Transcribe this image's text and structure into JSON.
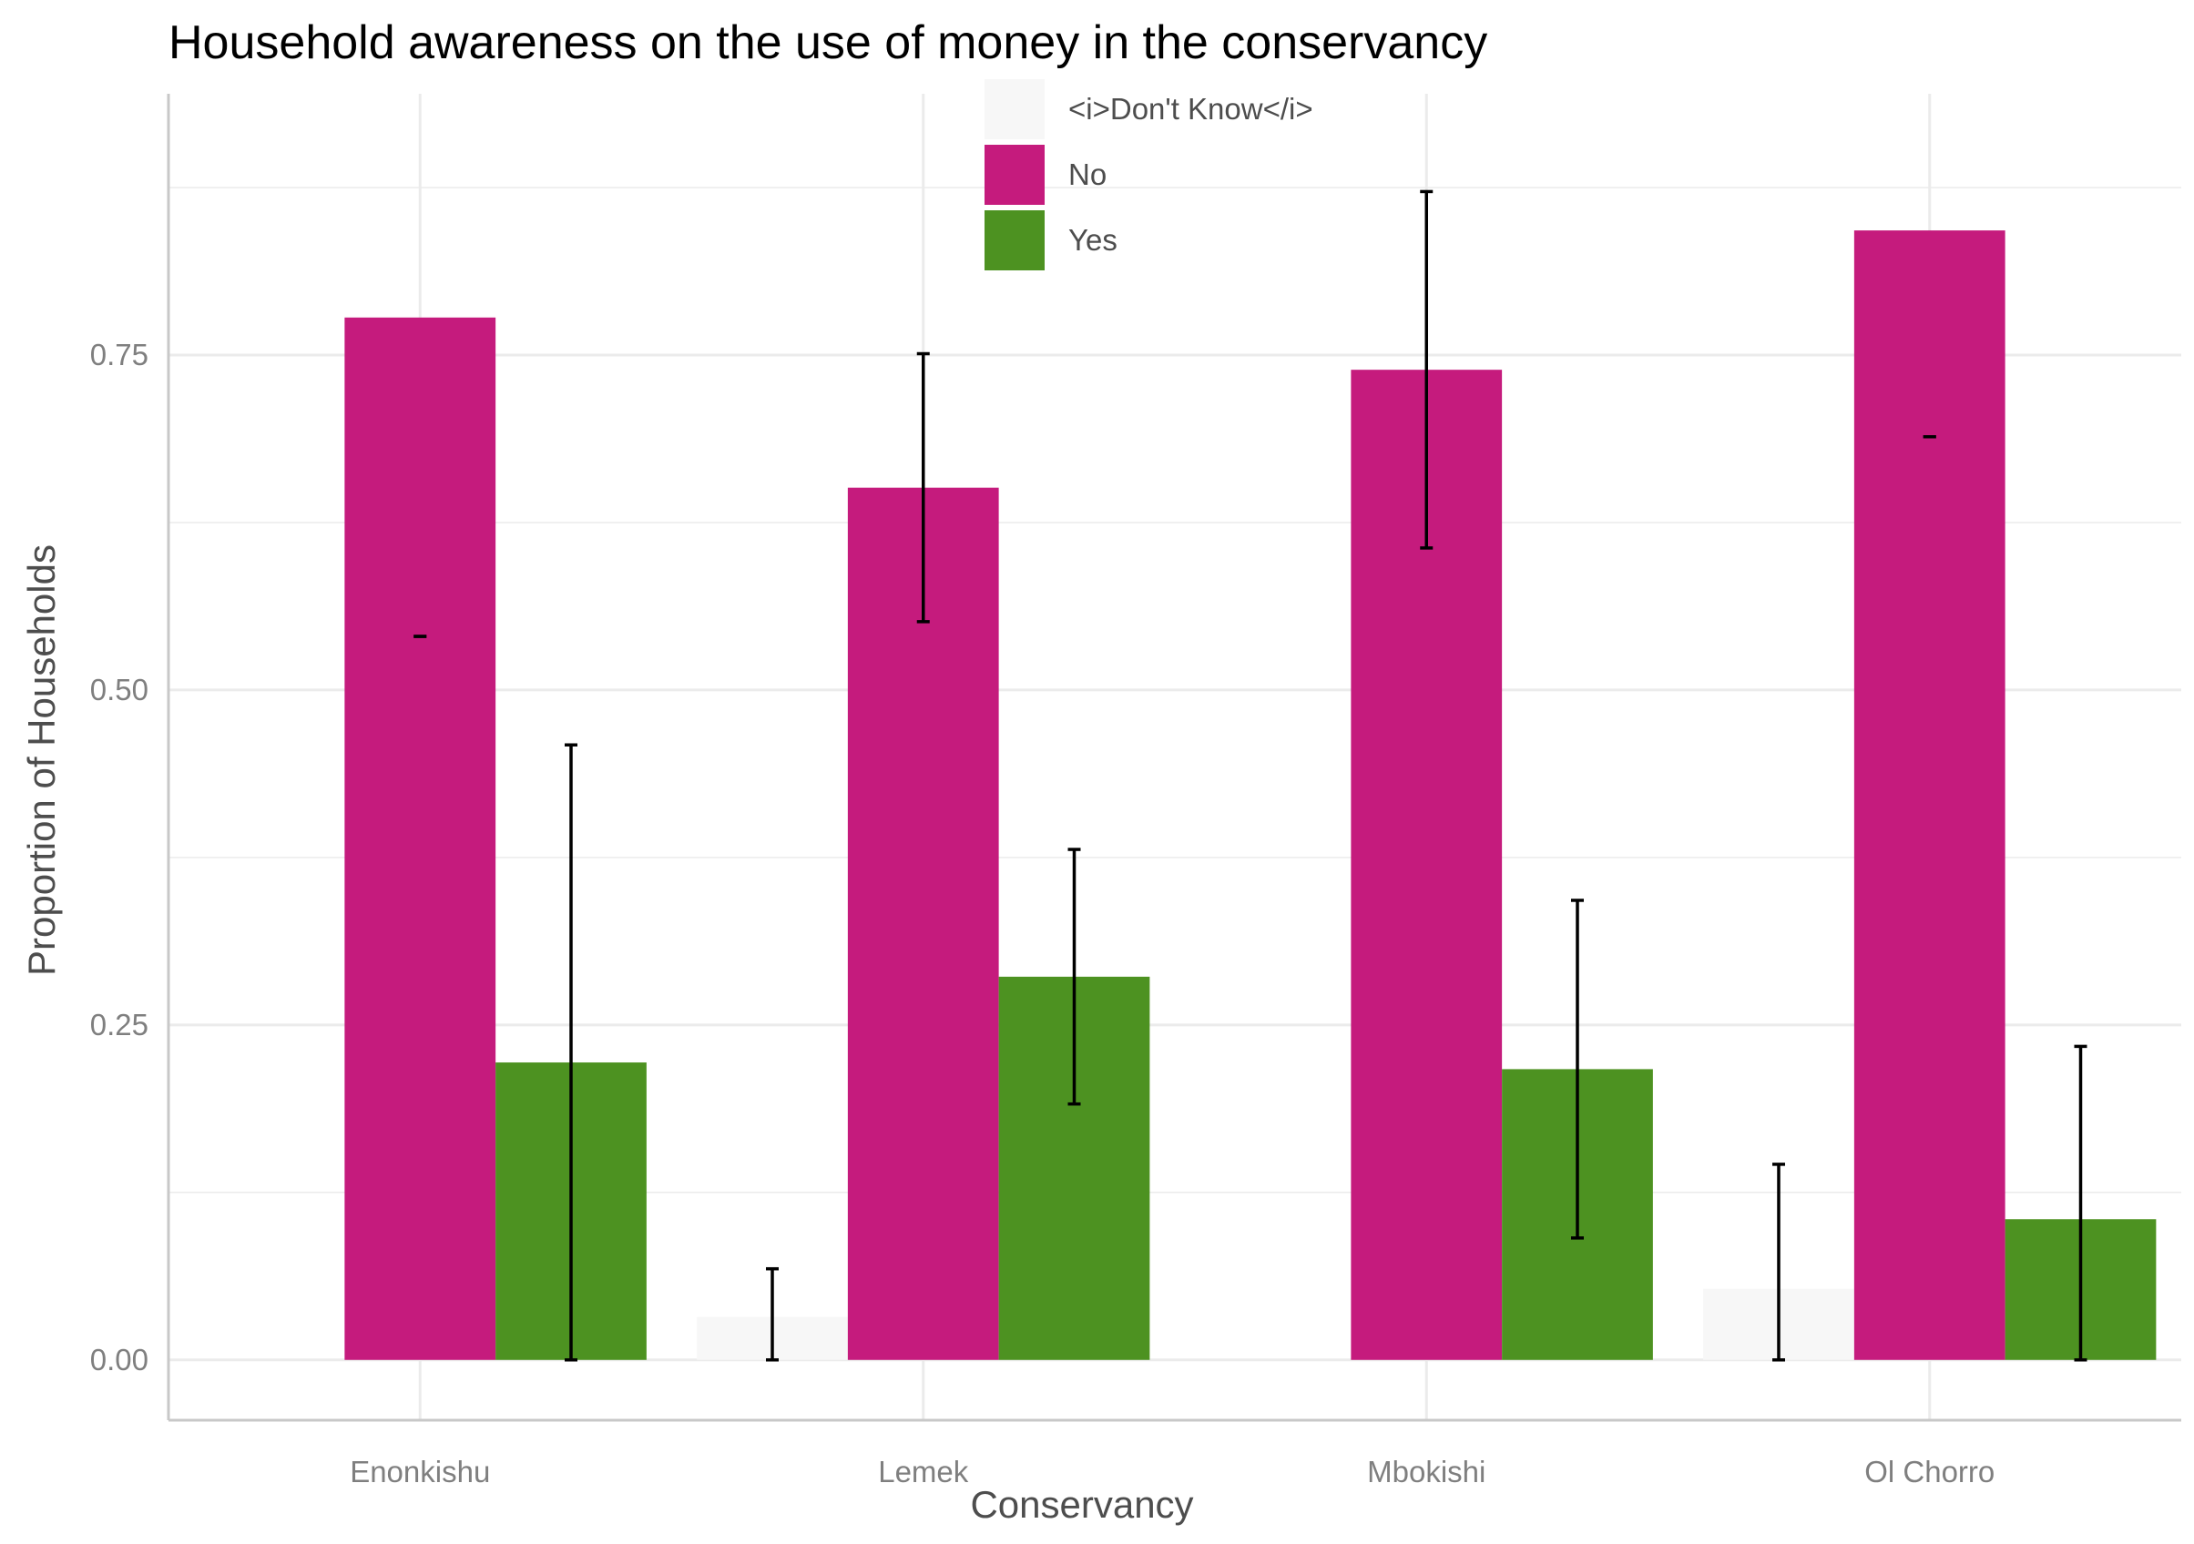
{
  "chart_data": {
    "type": "bar",
    "title": "Household awareness on the use of money in the conservancy",
    "xlabel": "Conservancy",
    "ylabel": "Proportion of Households",
    "ylim": [
      -0.045,
      0.945
    ],
    "yticks": [
      0.0,
      0.25,
      0.5,
      0.75
    ],
    "ytick_labels": [
      "0.00",
      "0.25",
      "0.50",
      "0.75"
    ],
    "y_minor_gridlines": [
      0.125,
      0.375,
      0.625,
      0.875
    ],
    "grid": true,
    "legend_position": "top-center",
    "categories": [
      "Enonkishu",
      "Lemek",
      "Mbokishi",
      "Ol Chorro"
    ],
    "series": [
      {
        "name": "<i>Don't Know</i>",
        "color": "#f7f7f7",
        "values": [
          null,
          0.032,
          null,
          0.053
        ],
        "error_low": [
          null,
          0.0,
          null,
          0.0
        ],
        "error_high": [
          null,
          0.068,
          null,
          0.146
        ]
      },
      {
        "name": "No",
        "color": "#c51b7d",
        "values": [
          0.778,
          0.651,
          0.739,
          0.843
        ],
        "error_low": [
          0.54,
          0.551,
          0.606,
          0.689
        ],
        "error_high": [
          0.54,
          0.751,
          0.872,
          0.689
        ]
      },
      {
        "name": "Yes",
        "color": "#4d9221",
        "values": [
          0.222,
          0.286,
          0.217,
          0.105
        ],
        "error_low": [
          0.0,
          0.191,
          0.091,
          0.0
        ],
        "error_high": [
          0.459,
          0.381,
          0.343,
          0.234
        ]
      }
    ]
  }
}
